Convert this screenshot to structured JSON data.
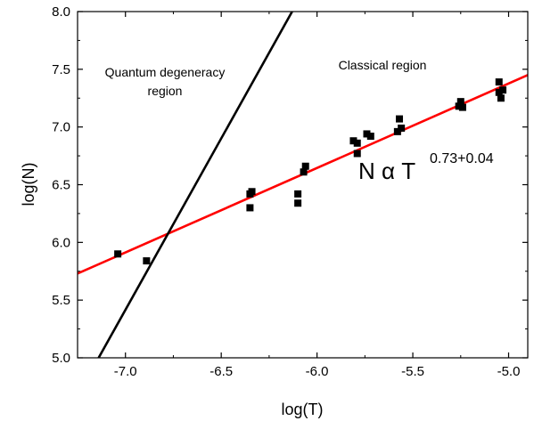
{
  "chart_data": {
    "type": "scatter",
    "xlabel": "log(T)",
    "ylabel": "log(N)",
    "xlim": [
      -7.25,
      -4.9
    ],
    "ylim": [
      5.0,
      8.0
    ],
    "x_ticks": [
      -7.0,
      -6.5,
      -6.0,
      -5.5,
      -5.0
    ],
    "x_tick_labels": [
      "-7.0",
      "-6.5",
      "-6.0",
      "-5.5",
      "-5.0"
    ],
    "y_ticks": [
      5.0,
      5.5,
      6.0,
      6.5,
      7.0,
      7.5,
      8.0
    ],
    "y_tick_labels": [
      "5.0",
      "5.5",
      "6.0",
      "6.5",
      "7.0",
      "7.5",
      "8.0"
    ],
    "grid": false,
    "series": [
      {
        "marker": "square",
        "color": "#000000",
        "points": [
          {
            "x": -7.04,
            "y": 5.9
          },
          {
            "x": -6.89,
            "y": 5.84
          },
          {
            "x": -6.35,
            "y": 6.42
          },
          {
            "x": -6.34,
            "y": 6.44
          },
          {
            "x": -6.35,
            "y": 6.3
          },
          {
            "x": -6.1,
            "y": 6.42
          },
          {
            "x": -6.1,
            "y": 6.34
          },
          {
            "x": -6.07,
            "y": 6.61
          },
          {
            "x": -6.06,
            "y": 6.66
          },
          {
            "x": -5.81,
            "y": 6.88
          },
          {
            "x": -5.79,
            "y": 6.86
          },
          {
            "x": -5.79,
            "y": 6.77
          },
          {
            "x": -5.74,
            "y": 6.94
          },
          {
            "x": -5.72,
            "y": 6.92
          },
          {
            "x": -5.58,
            "y": 6.96
          },
          {
            "x": -5.57,
            "y": 7.07
          },
          {
            "x": -5.56,
            "y": 6.99
          },
          {
            "x": -5.26,
            "y": 7.18
          },
          {
            "x": -5.25,
            "y": 7.22
          },
          {
            "x": -5.24,
            "y": 7.17
          },
          {
            "x": -5.05,
            "y": 7.39
          },
          {
            "x": -5.05,
            "y": 7.3
          },
          {
            "x": -5.04,
            "y": 7.25
          },
          {
            "x": -5.03,
            "y": 7.32
          }
        ]
      }
    ],
    "lines": [
      {
        "name": "fit",
        "color": "#ff0000",
        "x": [
          -7.25,
          -4.9
        ],
        "y": [
          5.73,
          7.45
        ]
      },
      {
        "name": "boundary",
        "color": "#000000",
        "x": [
          -7.14,
          -6.13
        ],
        "y": [
          5.0,
          8.0
        ]
      }
    ],
    "annotations": {
      "quantum_line1": "Quantum degeneracy",
      "quantum_line2": "region",
      "classical": "Classical region",
      "formula_main": "N α T",
      "formula_exponent": "0.73+0.04"
    },
    "colors": {
      "fit_line": "#ff0000",
      "boundary_line": "#000000",
      "markers": "#000000"
    }
  }
}
